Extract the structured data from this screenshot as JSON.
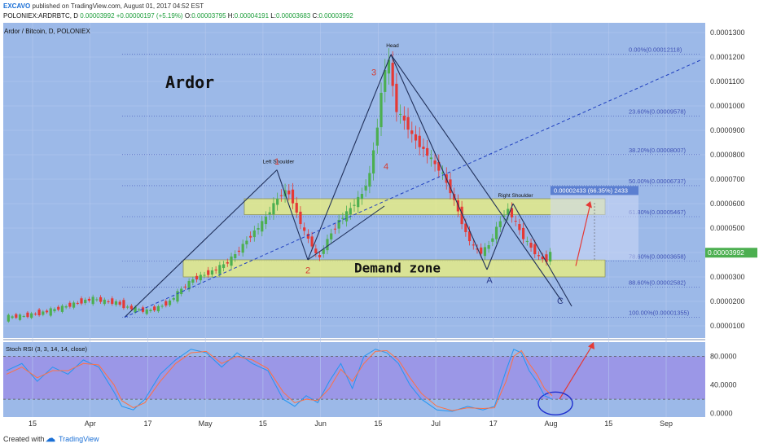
{
  "header": {
    "author": "EXCAVO",
    "published": "published on TradingView.com, August 01, 2017 04:52 EST",
    "symbol_line": "POLONIEX:ARDRBTC, D",
    "ohlc": {
      "O_label": "O:",
      "O": "0.00003795",
      "H_label": "H:",
      "H": "0.00004191",
      "L_label": "L:",
      "L": "0.00003683",
      "C_label": "C:",
      "C": "0.00003992"
    },
    "last": "0.00003992",
    "change": "+0.00000197 (+5.19%)"
  },
  "chart_data": [
    {
      "type": "candlestick",
      "title": "Ardor / Bitcoin, D, POLONIEX",
      "annotation_title": "Ardor",
      "x_ticks": [
        "15",
        "Apr",
        "17",
        "May",
        "15",
        "Jun",
        "15",
        "Jul",
        "17",
        "Aug",
        "15",
        "Sep"
      ],
      "y_ticks": [
        "0.0001300",
        "0.0001200",
        "0.0001100",
        "0.0001000",
        "0.0000900",
        "0.0000800",
        "0.0000700",
        "0.0000600",
        "0.0000500",
        "0.0000400",
        "0.0000300",
        "0.0000200",
        "0.0000100"
      ],
      "ylim": [
        5e-06,
        0.000134
      ],
      "price_path": [
        [
          0,
          1.35e-05
        ],
        [
          5,
          1.4e-05
        ],
        [
          10,
          1.55e-05
        ],
        [
          15,
          1.75e-05
        ],
        [
          20,
          2e-05
        ],
        [
          23,
          2.1e-05
        ],
        [
          26,
          2e-05
        ],
        [
          29,
          1.95e-05
        ],
        [
          32,
          1.75e-05
        ],
        [
          35,
          1.65e-05
        ],
        [
          37,
          1.6e-05
        ],
        [
          40,
          1.75e-05
        ],
        [
          43,
          2e-05
        ],
        [
          46,
          2.5e-05
        ],
        [
          49,
          2.9e-05
        ],
        [
          52,
          3.1e-05
        ],
        [
          55,
          3.3e-05
        ],
        [
          58,
          3.6e-05
        ],
        [
          61,
          4.1e-05
        ],
        [
          64,
          4.7e-05
        ],
        [
          67,
          5.2e-05
        ],
        [
          69,
          5.7e-05
        ],
        [
          71,
          6.2e-05
        ],
        [
          72,
          6.4e-05
        ],
        [
          73,
          6.5e-05
        ],
        [
          74,
          6.4e-05
        ],
        [
          75,
          6.1e-05
        ],
        [
          76,
          5.6e-05
        ],
        [
          78,
          4.8e-05
        ],
        [
          80,
          4.3e-05
        ],
        [
          81,
          3.9e-05
        ],
        [
          82,
          3.8e-05
        ],
        [
          83,
          4.2e-05
        ],
        [
          85,
          4.8e-05
        ],
        [
          87,
          5.3e-05
        ],
        [
          89,
          5.6e-05
        ],
        [
          91,
          6e-05
        ],
        [
          93,
          6.4e-05
        ],
        [
          95,
          7.2e-05
        ],
        [
          96,
          8.2e-05
        ],
        [
          97,
          9.2e-05
        ],
        [
          98,
          0.000105
        ],
        [
          99,
          0.000115
        ],
        [
          100,
          0.000118
        ],
        [
          101,
          0.000108
        ],
        [
          102,
          9.8e-05
        ],
        [
          104,
          9.4e-05
        ],
        [
          106,
          8.8e-05
        ],
        [
          108,
          8.4e-05
        ],
        [
          110,
          8e-05
        ],
        [
          112,
          7.6e-05
        ],
        [
          114,
          7.2e-05
        ],
        [
          116,
          6.5e-05
        ],
        [
          118,
          5.7e-05
        ],
        [
          120,
          4.8e-05
        ],
        [
          122,
          4.2e-05
        ],
        [
          124,
          4e-05
        ],
        [
          126,
          4.3e-05
        ],
        [
          128,
          5e-05
        ],
        [
          130,
          5.6e-05
        ],
        [
          131,
          5.75e-05
        ],
        [
          133,
          5.2e-05
        ],
        [
          135,
          4.6e-05
        ],
        [
          137,
          4.2e-05
        ],
        [
          139,
          3.8e-05
        ],
        [
          141,
          3.7e-05
        ],
        [
          142,
          3.99e-05
        ]
      ],
      "price_x_range": [
        0,
        142
      ],
      "annotations": {
        "head": "Head",
        "left_shoulder": "Left Shoulder",
        "right_shoulder": "Right Shoulder",
        "demand_zone": "Demand zone",
        "wave_labels": [
          "1",
          "2",
          "3",
          "4",
          "A",
          "C"
        ]
      },
      "fib_levels": [
        {
          "label": "0.00%(0.00012118)",
          "value": 0.00012118
        },
        {
          "label": "23.60%(0.00009578)",
          "value": 9.578e-05
        },
        {
          "label": "38.20%(0.00008007)",
          "value": 8.007e-05
        },
        {
          "label": "50.00%(0.00006737)",
          "value": 6.737e-05
        },
        {
          "label": "61.80%(0.00005467)",
          "value": 5.467e-05
        },
        {
          "label": "78.60%(0.00003658)",
          "value": 3.658e-05
        },
        {
          "label": "88.60%(0.00002582)",
          "value": 2.582e-05
        },
        {
          "label": "100.00%(0.00001355)",
          "value": 1.355e-05
        }
      ],
      "zones": [
        {
          "name": "resistance-zone",
          "from": 5.55e-05,
          "to": 6.2e-05
        },
        {
          "name": "demand-zone",
          "from": 3e-05,
          "to": 3.7e-05
        }
      ],
      "target_box_label": "0.00002433 (66.35%) 2433",
      "grid": true,
      "colors": {
        "background": "#9cb9e8",
        "up": "#4caf50",
        "down": "#e53935",
        "zone": "#eef27a",
        "fib": "#3f51b5",
        "arrow": "#e53935",
        "wave_label": "#d6392f"
      }
    },
    {
      "type": "line",
      "title": "Stoch RSI (3, 3, 14, 14, close)",
      "y_ticks": [
        "80.0000",
        "40.0000",
        "0.0000"
      ],
      "ylim": [
        -5,
        100
      ],
      "bands": [
        20,
        80
      ],
      "x_range": [
        0,
        142
      ],
      "series": [
        {
          "color": "#2196f3",
          "points": [
            [
              0,
              60
            ],
            [
              4,
              70
            ],
            [
              8,
              45
            ],
            [
              12,
              65
            ],
            [
              16,
              55
            ],
            [
              20,
              75
            ],
            [
              24,
              65
            ],
            [
              28,
              30
            ],
            [
              30,
              10
            ],
            [
              33,
              5
            ],
            [
              36,
              20
            ],
            [
              40,
              55
            ],
            [
              44,
              75
            ],
            [
              48,
              90
            ],
            [
              52,
              85
            ],
            [
              56,
              65
            ],
            [
              60,
              85
            ],
            [
              64,
              70
            ],
            [
              68,
              60
            ],
            [
              72,
              20
            ],
            [
              75,
              10
            ],
            [
              78,
              25
            ],
            [
              81,
              15
            ],
            [
              84,
              45
            ],
            [
              87,
              70
            ],
            [
              90,
              35
            ],
            [
              93,
              80
            ],
            [
              96,
              90
            ],
            [
              99,
              85
            ],
            [
              102,
              70
            ],
            [
              105,
              40
            ],
            [
              108,
              20
            ],
            [
              112,
              5
            ],
            [
              116,
              3
            ],
            [
              120,
              10
            ],
            [
              124,
              5
            ],
            [
              127,
              10
            ],
            [
              130,
              60
            ],
            [
              132,
              90
            ],
            [
              134,
              85
            ],
            [
              136,
              60
            ],
            [
              138,
              45
            ],
            [
              140,
              25
            ],
            [
              142,
              20
            ]
          ]
        },
        {
          "color": "#ff7043",
          "points": [
            [
              0,
              55
            ],
            [
              4,
              65
            ],
            [
              8,
              50
            ],
            [
              12,
              60
            ],
            [
              16,
              60
            ],
            [
              20,
              70
            ],
            [
              24,
              68
            ],
            [
              28,
              40
            ],
            [
              30,
              18
            ],
            [
              33,
              8
            ],
            [
              36,
              15
            ],
            [
              40,
              45
            ],
            [
              44,
              70
            ],
            [
              48,
              85
            ],
            [
              52,
              87
            ],
            [
              56,
              70
            ],
            [
              60,
              80
            ],
            [
              64,
              75
            ],
            [
              68,
              63
            ],
            [
              72,
              30
            ],
            [
              75,
              15
            ],
            [
              78,
              20
            ],
            [
              81,
              18
            ],
            [
              84,
              35
            ],
            [
              87,
              62
            ],
            [
              90,
              45
            ],
            [
              93,
              70
            ],
            [
              96,
              87
            ],
            [
              99,
              88
            ],
            [
              102,
              75
            ],
            [
              105,
              50
            ],
            [
              108,
              28
            ],
            [
              112,
              10
            ],
            [
              116,
              4
            ],
            [
              120,
              8
            ],
            [
              124,
              7
            ],
            [
              127,
              8
            ],
            [
              130,
              45
            ],
            [
              132,
              80
            ],
            [
              134,
              88
            ],
            [
              136,
              70
            ],
            [
              138,
              55
            ],
            [
              140,
              35
            ],
            [
              142,
              25
            ]
          ]
        }
      ]
    }
  ],
  "footer": {
    "created_with": "Created with",
    "brand": "TradingView"
  }
}
